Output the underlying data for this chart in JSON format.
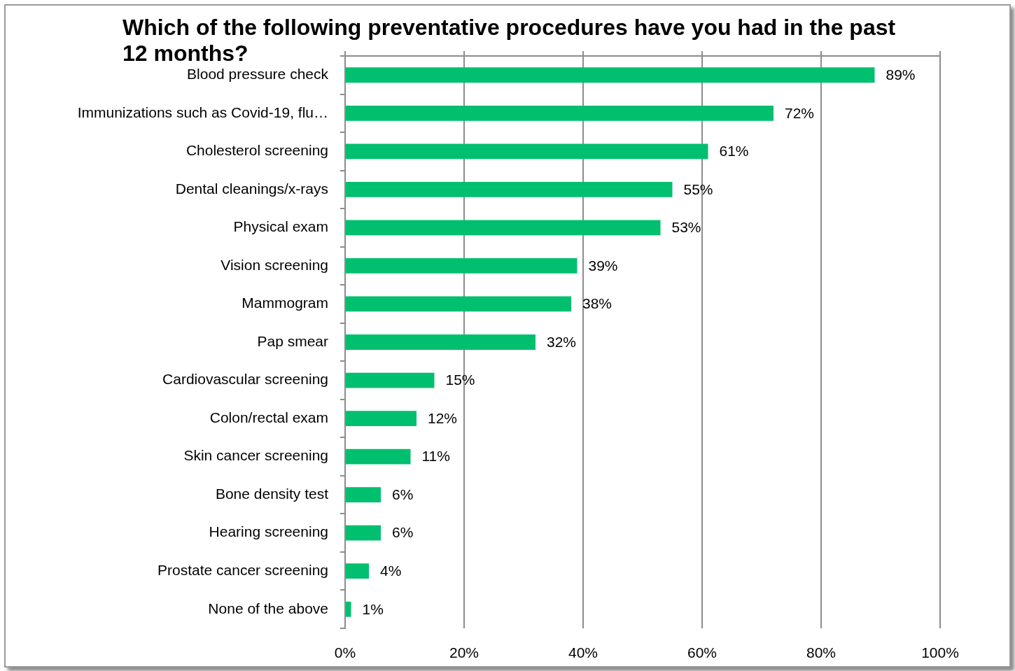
{
  "chart_data": {
    "type": "bar",
    "orientation": "horizontal",
    "title": "Which of the following preventative procedures have you had in the past 12 months?",
    "categories": [
      "Blood pressure check",
      "Immunizations such as Covid-19, flu…",
      "Cholesterol screening",
      "Dental cleanings/x-rays",
      "Physical exam",
      "Vision screening",
      "Mammogram",
      "Pap smear",
      "Cardiovascular screening",
      "Colon/rectal exam",
      "Skin cancer screening",
      "Bone density test",
      "Hearing screening",
      "Prostate cancer screening",
      "None of the above"
    ],
    "values": [
      89,
      72,
      61,
      55,
      53,
      39,
      38,
      32,
      15,
      12,
      11,
      6,
      6,
      4,
      1
    ],
    "value_labels": [
      "89%",
      "72%",
      "61%",
      "55%",
      "53%",
      "39%",
      "38%",
      "32%",
      "15%",
      "12%",
      "11%",
      "6%",
      "6%",
      "4%",
      "1%"
    ],
    "color": "#00bf6f",
    "xlim": [
      0,
      100
    ],
    "xticks": [
      {
        "value": 0,
        "label": "0%"
      },
      {
        "value": 20,
        "label": "20%"
      },
      {
        "value": 40,
        "label": "40%"
      },
      {
        "value": 60,
        "label": "60%"
      },
      {
        "value": 80,
        "label": "80%"
      },
      {
        "value": 100,
        "label": "100%"
      }
    ],
    "grid": "x"
  }
}
